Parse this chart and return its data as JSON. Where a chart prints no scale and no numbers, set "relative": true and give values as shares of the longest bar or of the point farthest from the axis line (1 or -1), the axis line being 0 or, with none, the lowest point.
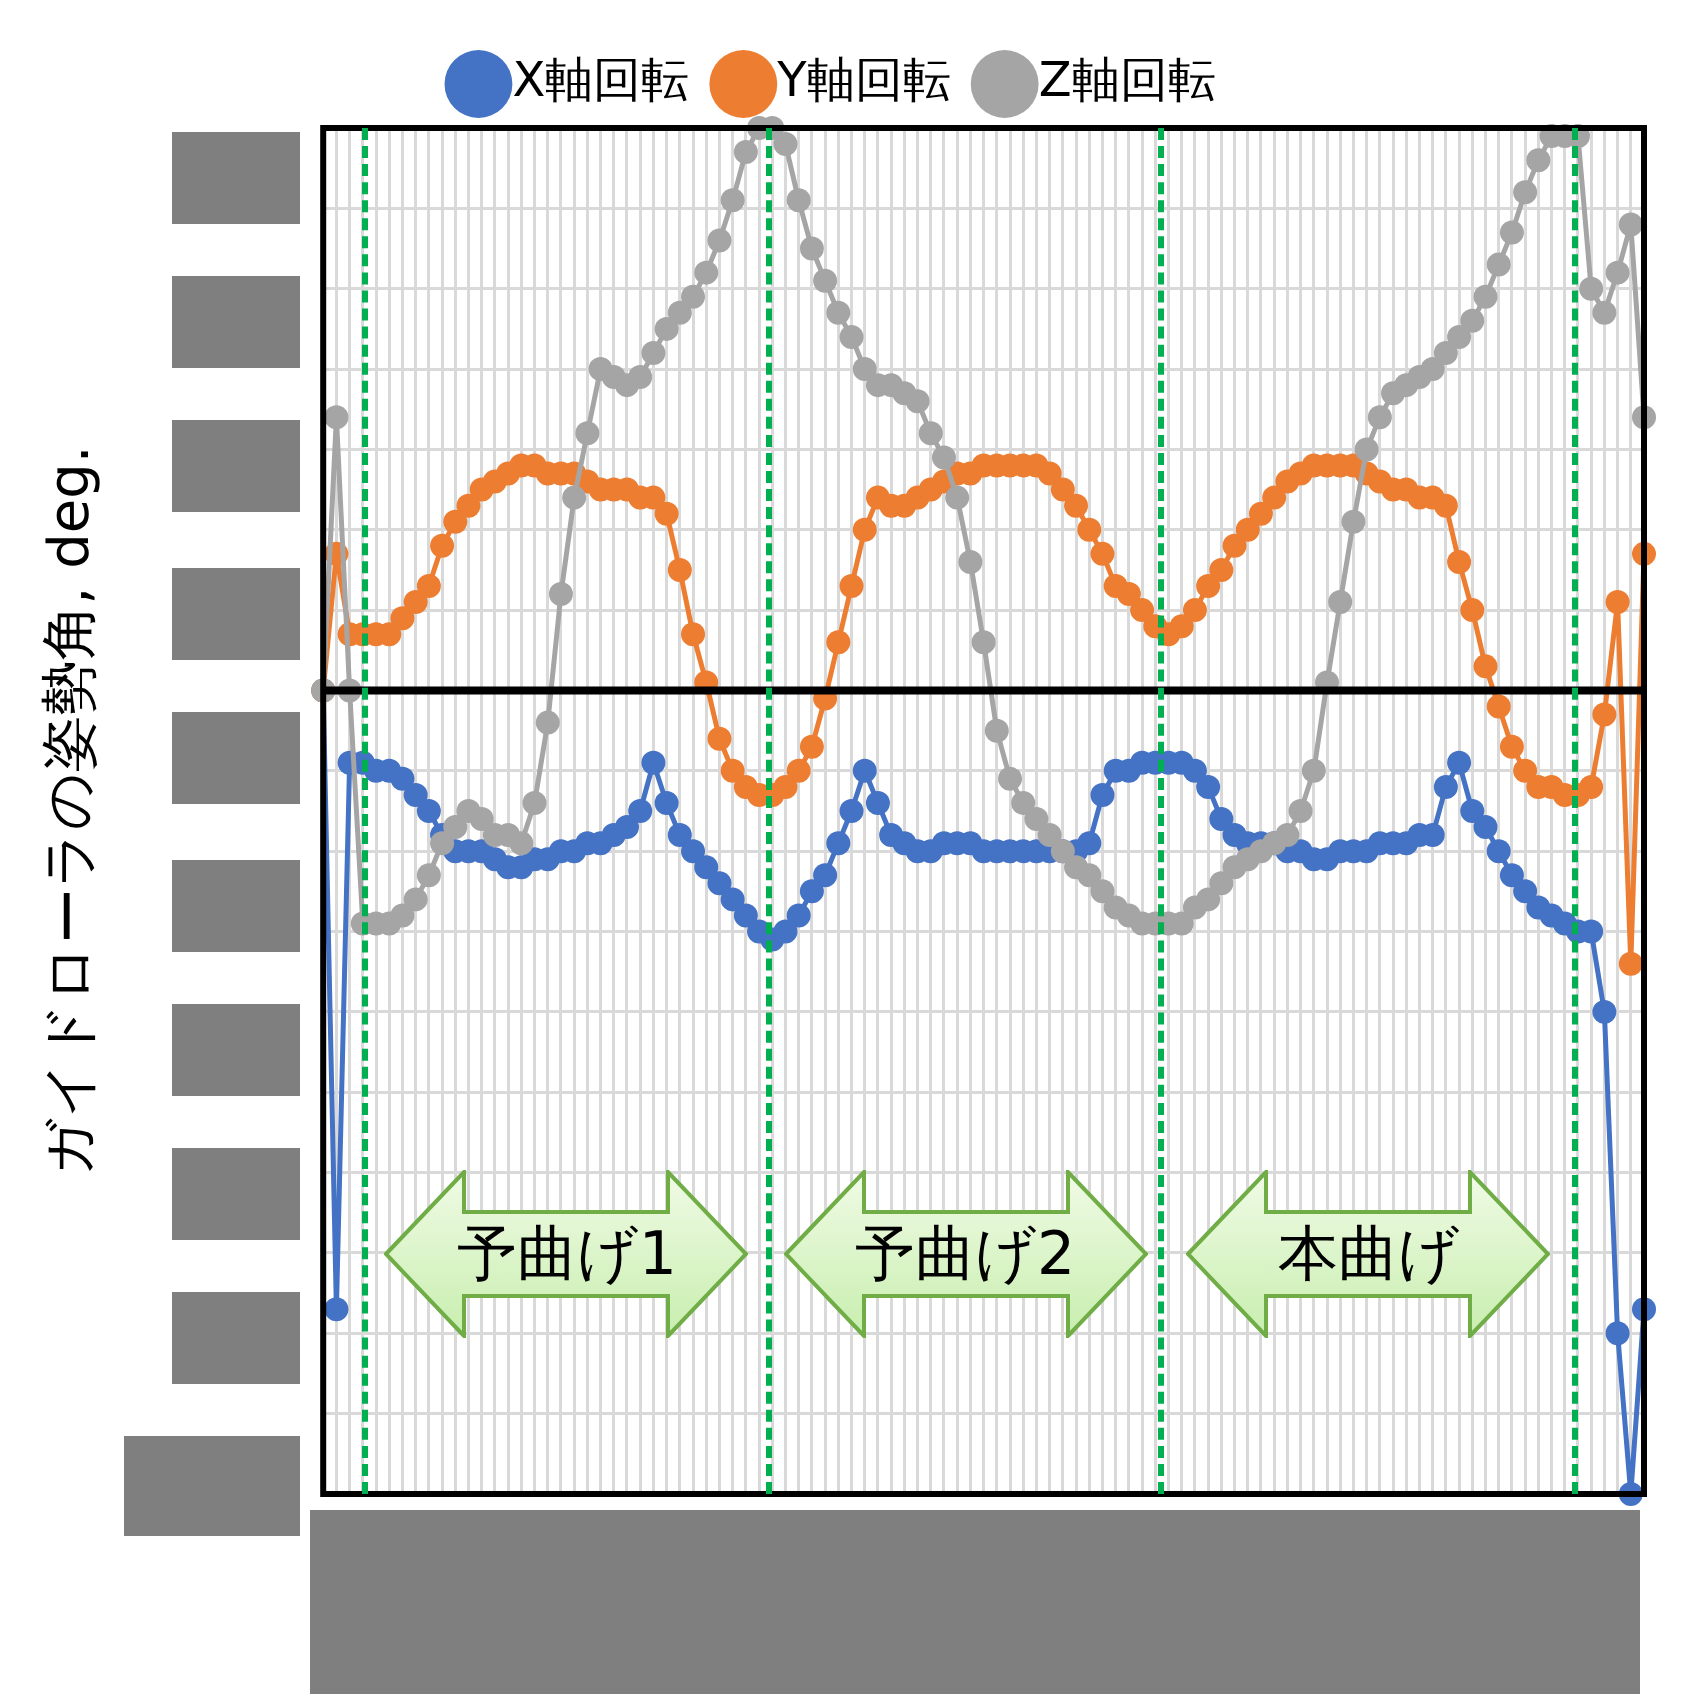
{
  "chart_data": {
    "type": "line",
    "ylabel": "ガイドローラの姿勢角, deg.",
    "relative": true,
    "grid": true,
    "legend": "top",
    "marker": "circle",
    "line_style": "solid",
    "categories": [
      null,
      null,
      null,
      null,
      null,
      null,
      null,
      null,
      null,
      null,
      null,
      null,
      null,
      null,
      null,
      null,
      null,
      null,
      null,
      null,
      null,
      null,
      null,
      null,
      null,
      null,
      null,
      null,
      null,
      null,
      null,
      null,
      null,
      null,
      null,
      null,
      null,
      null,
      null,
      null,
      null,
      null,
      null,
      null,
      null,
      null,
      null,
      null,
      null,
      null,
      null,
      null,
      null,
      null,
      null,
      null,
      null,
      null,
      null,
      null,
      null,
      null,
      null,
      null,
      null,
      null,
      null,
      null,
      null,
      null,
      null,
      null,
      null,
      null,
      null,
      null,
      null,
      null,
      null,
      null,
      null,
      null,
      null,
      null,
      null,
      null,
      null,
      null,
      null,
      null,
      null,
      null,
      null,
      null,
      null,
      null,
      null,
      null,
      null,
      null,
      null
    ],
    "series": [
      {
        "name": "X軸回転",
        "color": "#4472c4",
        "values": [
          0,
          -0.77,
          -0.09,
          -0.09,
          -0.1,
          -0.1,
          -0.11,
          -0.13,
          -0.15,
          -0.18,
          -0.2,
          -0.2,
          -0.2,
          -0.21,
          -0.22,
          -0.22,
          -0.21,
          -0.21,
          -0.2,
          -0.2,
          -0.19,
          -0.19,
          -0.18,
          -0.17,
          -0.15,
          -0.09,
          -0.14,
          -0.18,
          -0.2,
          -0.22,
          -0.24,
          -0.26,
          -0.28,
          -0.3,
          -0.31,
          -0.3,
          -0.28,
          -0.25,
          -0.23,
          -0.19,
          -0.15,
          -0.1,
          -0.14,
          -0.18,
          -0.19,
          -0.2,
          -0.2,
          -0.19,
          -0.19,
          -0.19,
          -0.2,
          -0.2,
          -0.2,
          -0.2,
          -0.2,
          -0.2,
          -0.2,
          -0.2,
          -0.19,
          -0.13,
          -0.1,
          -0.1,
          -0.09,
          -0.09,
          -0.09,
          -0.09,
          -0.1,
          -0.12,
          -0.16,
          -0.18,
          -0.19,
          -0.19,
          -0.19,
          -0.2,
          -0.2,
          -0.21,
          -0.21,
          -0.2,
          -0.2,
          -0.2,
          -0.19,
          -0.19,
          -0.19,
          -0.18,
          -0.18,
          -0.12,
          -0.09,
          -0.15,
          -0.17,
          -0.2,
          -0.23,
          -0.25,
          -0.27,
          -0.28,
          -0.29,
          -0.3,
          -0.3,
          -0.4,
          -0.8,
          -1,
          -0.77
        ]
      },
      {
        "name": "Y軸回転",
        "color": "#ed7d31",
        "values": [
          0,
          0.17,
          0.07,
          0.07,
          0.07,
          0.07,
          0.09,
          0.11,
          0.13,
          0.18,
          0.21,
          0.23,
          0.25,
          0.26,
          0.27,
          0.28,
          0.28,
          0.27,
          0.27,
          0.27,
          0.26,
          0.25,
          0.25,
          0.25,
          0.24,
          0.24,
          0.22,
          0.15,
          0.07,
          0.01,
          -0.06,
          -0.1,
          -0.12,
          -0.13,
          -0.13,
          -0.12,
          -0.1,
          -0.07,
          -0.01,
          0.06,
          0.13,
          0.2,
          0.24,
          0.23,
          0.23,
          0.24,
          0.25,
          0.26,
          0.27,
          0.27,
          0.28,
          0.28,
          0.28,
          0.28,
          0.28,
          0.27,
          0.25,
          0.23,
          0.2,
          0.17,
          0.13,
          0.12,
          0.1,
          0.08,
          0.07,
          0.08,
          0.1,
          0.13,
          0.15,
          0.18,
          0.2,
          0.22,
          0.24,
          0.26,
          0.27,
          0.28,
          0.28,
          0.28,
          0.28,
          0.27,
          0.26,
          0.25,
          0.25,
          0.24,
          0.24,
          0.23,
          0.16,
          0.1,
          0.03,
          -0.02,
          -0.07,
          -0.1,
          -0.12,
          -0.12,
          -0.13,
          -0.13,
          -0.12,
          -0.03,
          0.11,
          -0.34,
          0.17
        ]
      },
      {
        "name": "Z軸回転",
        "color": "#a5a5a5",
        "values": [
          0,
          0.34,
          0,
          -0.29,
          -0.29,
          -0.29,
          -0.28,
          -0.26,
          -0.23,
          -0.19,
          -0.17,
          -0.15,
          -0.16,
          -0.18,
          -0.18,
          -0.19,
          -0.14,
          -0.04,
          0.12,
          0.24,
          0.32,
          0.4,
          0.39,
          0.38,
          0.39,
          0.42,
          0.45,
          0.47,
          0.49,
          0.52,
          0.56,
          0.61,
          0.67,
          0.7,
          0.7,
          0.68,
          0.61,
          0.55,
          0.51,
          0.47,
          0.44,
          0.4,
          0.38,
          0.38,
          0.37,
          0.36,
          0.32,
          0.29,
          0.24,
          0.16,
          0.06,
          -0.05,
          -0.11,
          -0.14,
          -0.16,
          -0.18,
          -0.2,
          -0.22,
          -0.23,
          -0.25,
          -0.27,
          -0.28,
          -0.29,
          -0.29,
          -0.29,
          -0.29,
          -0.27,
          -0.26,
          -0.24,
          -0.22,
          -0.21,
          -0.2,
          -0.19,
          -0.18,
          -0.15,
          -0.1,
          0.01,
          0.11,
          0.21,
          0.3,
          0.34,
          0.37,
          0.38,
          0.39,
          0.4,
          0.42,
          0.44,
          0.46,
          0.49,
          0.53,
          0.57,
          0.62,
          0.66,
          0.69,
          0.69,
          0.69,
          0.5,
          0.47,
          0.52,
          0.58,
          0.34
        ]
      }
    ],
    "annotations": [
      "予曲げ1",
      "予曲げ2",
      "本曲げ"
    ]
  }
}
